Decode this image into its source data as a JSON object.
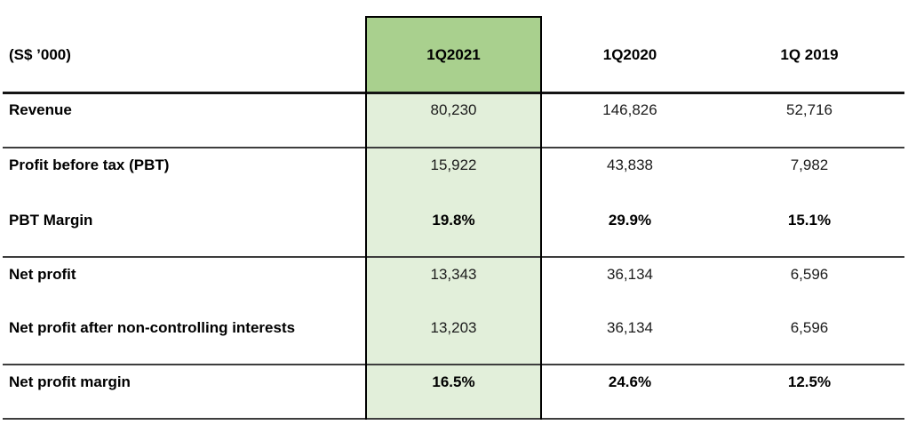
{
  "table": {
    "unit_label": "(S$ ’000)",
    "columns": [
      "1Q2021",
      "1Q2020",
      "1Q 2019"
    ],
    "highlighted_column": "1Q2021",
    "colors": {
      "highlight_header_bg": "#a9d08e",
      "highlight_body_bg": "#e2efda",
      "rule_line": "#3d3d3d",
      "header_rule_line": "#141414",
      "highlight_border": "#000000"
    },
    "rows": [
      {
        "label": "Revenue",
        "values": [
          "80,230",
          "146,826",
          "52,716"
        ],
        "bold_values": false
      },
      {
        "label": "Profit before tax (PBT)",
        "values": [
          "15,922",
          "43,838",
          "7,982"
        ],
        "bold_values": false
      },
      {
        "label": "PBT Margin",
        "values": [
          "19.8%",
          "29.9%",
          "15.1%"
        ],
        "bold_values": true
      },
      {
        "label": "Net profit",
        "values": [
          "13,343",
          "36,134",
          "6,596"
        ],
        "bold_values": false
      },
      {
        "label": "Net profit after non-controlling interests",
        "values": [
          "13,203",
          "36,134",
          "6,596"
        ],
        "bold_values": false
      },
      {
        "label": "Net profit margin",
        "values": [
          "16.5%",
          "24.6%",
          "12.5%"
        ],
        "bold_values": true
      }
    ]
  }
}
